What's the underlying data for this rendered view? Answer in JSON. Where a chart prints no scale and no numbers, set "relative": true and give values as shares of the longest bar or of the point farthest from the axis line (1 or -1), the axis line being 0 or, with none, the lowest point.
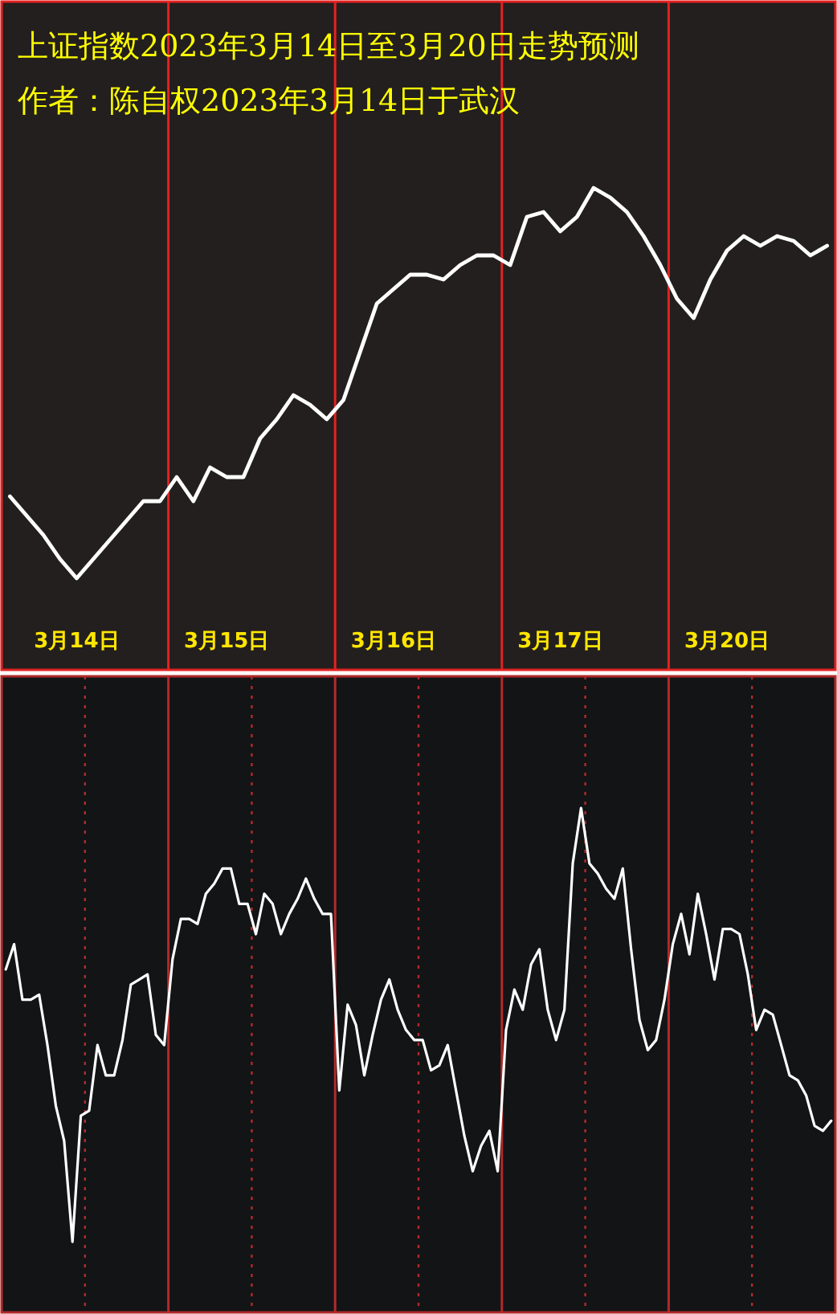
{
  "chart_data": [
    {
      "type": "line",
      "title": "上证指数2023年3月14日至3月20日走势预测",
      "subtitle": "作者：陈自权2023年3月14日于武汉",
      "relative": true,
      "grid": "x",
      "tick_labels": "x",
      "categories": [
        null,
        null,
        null,
        null,
        "3月14日",
        null,
        null,
        null,
        null,
        null,
        null,
        null,
        null,
        "3月15日",
        null,
        null,
        null,
        null,
        null,
        null,
        null,
        null,
        null,
        "3月16日",
        null,
        null,
        null,
        null,
        null,
        null,
        null,
        null,
        null,
        "3月17日",
        null,
        null,
        null,
        null,
        null,
        null,
        null,
        null,
        null,
        "3月20日",
        null,
        null,
        null,
        null,
        null,
        null
      ],
      "series": [
        {
          "color": "#ffffff",
          "values": [
            0.36,
            0.32,
            0.28,
            0.23,
            0.19,
            0.23,
            0.27,
            0.31,
            0.35,
            0.35,
            0.4,
            0.35,
            0.42,
            0.4,
            0.4,
            0.48,
            0.52,
            0.57,
            0.55,
            0.52,
            0.56,
            0.66,
            0.76,
            0.79,
            0.82,
            0.82,
            0.81,
            0.84,
            0.86,
            0.86,
            0.84,
            0.94,
            0.95,
            0.91,
            0.94,
            1,
            0.98,
            0.95,
            0.9,
            0.84,
            0.77,
            0.73,
            0.81,
            0.87,
            0.9,
            0.88,
            0.9,
            0.89,
            0.86,
            0.88
          ]
        }
      ]
    },
    {
      "type": "line",
      "relative": true,
      "grid": "x",
      "categories": [
        null,
        null,
        null,
        null,
        null,
        null,
        null,
        null,
        null,
        null,
        null,
        null,
        null,
        null,
        null,
        null,
        null,
        null,
        null,
        null,
        null,
        null,
        null,
        null,
        null,
        null,
        null,
        null,
        null,
        null,
        null,
        null,
        null,
        null,
        null,
        null,
        null,
        null,
        null,
        null,
        null,
        null,
        null,
        null,
        null,
        null,
        null,
        null,
        null,
        null,
        null,
        null,
        null,
        null,
        null,
        null,
        null,
        null,
        null,
        null,
        null,
        null,
        null,
        null,
        null,
        null,
        null,
        null,
        null,
        null,
        null,
        null,
        null,
        null,
        null,
        null,
        null,
        null,
        null,
        null,
        null,
        null,
        null,
        null,
        null,
        null,
        null,
        null,
        null,
        null,
        null,
        null,
        null,
        null,
        null,
        null,
        null,
        null,
        null,
        null
      ],
      "series": [
        {
          "color": "#ffffff",
          "values": [
            0.68,
            0.73,
            0.62,
            0.62,
            0.63,
            0.53,
            0.41,
            0.34,
            0.14,
            0.39,
            0.4,
            0.53,
            0.47,
            0.47,
            0.54,
            0.65,
            0.66,
            0.67,
            0.55,
            0.53,
            0.7,
            0.78,
            0.78,
            0.77,
            0.83,
            0.85,
            0.88,
            0.88,
            0.81,
            0.81,
            0.75,
            0.83,
            0.81,
            0.75,
            0.79,
            0.82,
            0.86,
            0.82,
            0.79,
            0.79,
            0.44,
            0.61,
            0.57,
            0.47,
            0.55,
            0.62,
            0.66,
            0.6,
            0.56,
            0.54,
            0.54,
            0.48,
            0.49,
            0.53,
            0.44,
            0.35,
            0.28,
            0.33,
            0.36,
            0.28,
            0.56,
            0.64,
            0.6,
            0.69,
            0.72,
            0.6,
            0.54,
            0.6,
            0.89,
            1,
            0.89,
            0.87,
            0.84,
            0.82,
            0.88,
            0.72,
            0.58,
            0.52,
            0.54,
            0.62,
            0.73,
            0.79,
            0.71,
            0.83,
            0.75,
            0.66,
            0.76,
            0.76,
            0.75,
            0.67,
            0.56,
            0.6,
            0.59,
            0.53,
            0.47,
            0.46,
            0.43,
            0.37,
            0.36,
            0.38
          ]
        }
      ]
    }
  ]
}
